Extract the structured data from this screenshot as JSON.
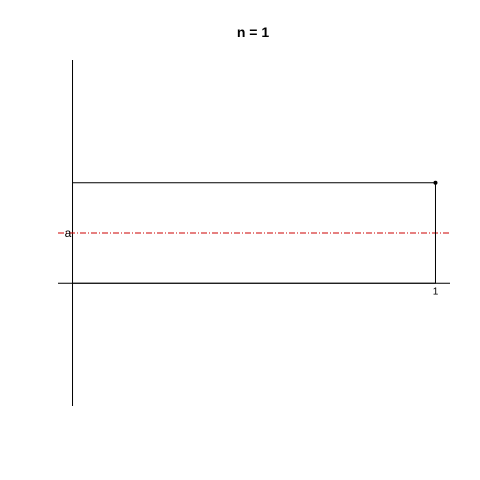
{
  "chart_data": {
    "type": "line",
    "title": "n = 1",
    "xlabel": "",
    "ylabel": "",
    "xlim": [
      -0.04,
      1.04
    ],
    "ylim": [
      -1.22,
      2.22
    ],
    "grid": false,
    "legend": "none",
    "x_tick_labels": [
      {
        "value": 1,
        "label": "1"
      }
    ],
    "reference_line": {
      "value": 0.5,
      "label": "a",
      "color": "#cc0000",
      "style": "dashdot"
    },
    "series": [
      {
        "x": [
          0,
          1,
          1
        ],
        "y": [
          0,
          0,
          1
        ],
        "color": "#000000",
        "kind": "step"
      }
    ],
    "bar": {
      "x0": 0,
      "x1": 1,
      "y": 1,
      "color": "#000000"
    },
    "endpoint": {
      "x": 1,
      "y": 1,
      "color": "#000000"
    }
  }
}
